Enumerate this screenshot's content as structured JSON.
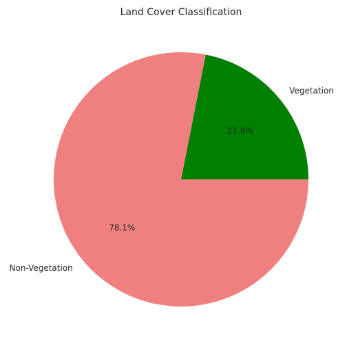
{
  "chart_data": {
    "type": "pie",
    "title": "Land Cover Classification",
    "slices": [
      {
        "label": "Vegetation",
        "value": 21.9,
        "pct_label": "21.9%",
        "color": "#008000"
      },
      {
        "label": "Non-Vegetation",
        "value": 78.1,
        "pct_label": "78.1%",
        "color": "#f08080"
      }
    ],
    "start_angle_deg": 0,
    "direction": "counterclockwise",
    "legend": "none"
  }
}
